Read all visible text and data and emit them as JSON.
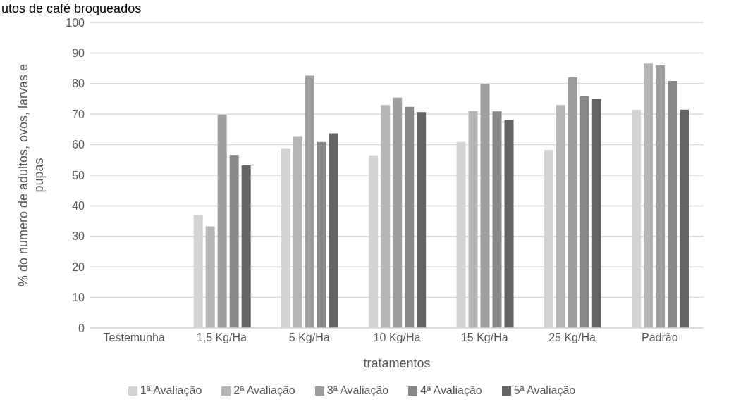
{
  "chart_data": {
    "type": "bar",
    "title": "utos de café broqueados",
    "xlabel": "tratamentos",
    "ylabel": "% do numero de adultos, ovos, larvas e pupas",
    "categories": [
      "Testemunha",
      "1,5 Kg/Ha",
      "5 Kg/Ha",
      "10 Kg/Ha",
      "15 Kg/Ha",
      "25 Kg/Ha",
      "Padrão"
    ],
    "series": [
      {
        "name": "1ª Avaliação",
        "color": "#d3d3d3",
        "values": [
          0,
          37,
          58.8,
          56.5,
          60.9,
          58.3,
          71.4
        ]
      },
      {
        "name": "2ª Avaliação",
        "color": "#b5b5b5",
        "values": [
          0,
          33.3,
          62.8,
          73,
          71,
          73,
          86.6
        ]
      },
      {
        "name": "3ª Avaliação",
        "color": "#9e9e9e",
        "values": [
          0,
          69.8,
          82.6,
          75.4,
          79.9,
          82,
          86
        ]
      },
      {
        "name": "4ª Avaliação",
        "color": "#878787",
        "values": [
          0,
          56.6,
          60.9,
          72.4,
          70.9,
          75.9,
          80.9
        ]
      },
      {
        "name": "5ª Avaliação",
        "color": "#646464",
        "values": [
          0,
          53.2,
          63.7,
          70.7,
          68.2,
          75,
          71.5
        ]
      }
    ],
    "ylim": [
      0,
      100
    ],
    "yticks": [
      0,
      10,
      20,
      30,
      40,
      50,
      60,
      70,
      80,
      90,
      100
    ],
    "grid": "y",
    "legend": "bottom"
  }
}
